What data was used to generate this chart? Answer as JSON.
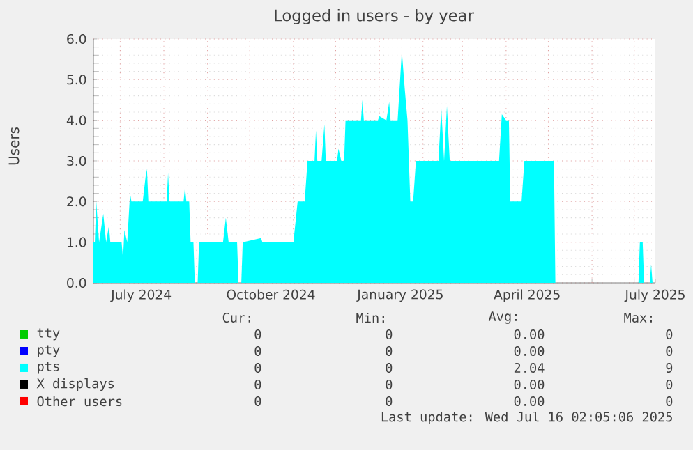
{
  "chart_data": {
    "type": "area",
    "title": "Logged in users - by year",
    "ylabel": "Users",
    "xlim": [
      "2024-06-12",
      "2025-07-16"
    ],
    "xticks": [
      {
        "value": "2024-07-01",
        "label": null
      },
      {
        "value": "2024-08-01",
        "label": null
      },
      {
        "value": "2024-09-01",
        "label": null
      },
      {
        "value": "2024-10-01",
        "label": null
      },
      {
        "value": "2024-11-01",
        "label": null
      },
      {
        "value": "2024-12-01",
        "label": null
      },
      {
        "value": "2025-01-01",
        "label": null
      },
      {
        "value": "2025-02-01",
        "label": null
      },
      {
        "value": "2025-03-01",
        "label": null
      },
      {
        "value": "2025-04-01",
        "label": null
      },
      {
        "value": "2025-05-01",
        "label": null
      },
      {
        "value": "2025-06-01",
        "label": null
      },
      {
        "value": "2025-07-01",
        "label": null
      },
      {
        "value": "2024-07-16",
        "label": "July 2024"
      },
      {
        "value": "2024-10-16",
        "label": "October 2024"
      },
      {
        "value": "2025-01-16",
        "label": "January 2025"
      },
      {
        "value": "2025-04-16",
        "label": "April 2025"
      },
      {
        "value": "2025-07-16",
        "label": "July 2025"
      }
    ],
    "ylim": [
      0,
      6
    ],
    "yticks": [
      {
        "value": 0,
        "label": "0.0"
      },
      {
        "value": 1,
        "label": "1.0"
      },
      {
        "value": 2,
        "label": "2.0"
      },
      {
        "value": 3,
        "label": "3.0"
      },
      {
        "value": 4,
        "label": "4.0"
      },
      {
        "value": 5,
        "label": "5.0"
      },
      {
        "value": 6,
        "label": "6.0"
      }
    ],
    "grid": true,
    "legend": "bottom",
    "x": [
      "2024-06-12",
      "2024-06-13",
      "2024-06-14",
      "2024-06-16",
      "2024-06-19",
      "2024-06-21",
      "2024-06-23",
      "2024-06-24",
      "2024-07-02",
      "2024-07-03",
      "2024-07-04",
      "2024-07-06",
      "2024-07-08",
      "2024-07-09",
      "2024-07-17",
      "2024-07-19",
      "2024-07-20",
      "2024-07-21",
      "2024-08-03",
      "2024-08-04",
      "2024-08-05",
      "2024-08-15",
      "2024-08-16",
      "2024-08-17",
      "2024-08-19",
      "2024-08-20",
      "2024-08-22",
      "2024-08-23",
      "2024-08-25",
      "2024-08-26",
      "2024-09-12",
      "2024-09-14",
      "2024-09-16",
      "2024-09-22",
      "2024-09-23",
      "2024-09-25",
      "2024-09-26",
      "2024-10-09",
      "2024-10-10",
      "2024-11-01",
      "2024-11-04",
      "2024-11-09",
      "2024-11-11",
      "2024-11-16",
      "2024-11-17",
      "2024-11-18",
      "2024-11-21",
      "2024-11-23",
      "2024-11-24",
      "2024-12-02",
      "2024-12-03",
      "2024-12-05",
      "2024-12-07",
      "2024-12-08",
      "2024-12-19",
      "2024-12-20",
      "2024-12-21",
      "2024-12-31",
      "2025-01-01",
      "2025-01-06",
      "2025-01-08",
      "2025-01-09",
      "2025-01-14",
      "2025-01-17",
      "2025-01-19",
      "2025-01-21",
      "2025-01-23",
      "2025-01-25",
      "2025-01-27",
      "2025-02-12",
      "2025-02-14",
      "2025-02-16",
      "2025-02-18",
      "2025-02-20",
      "2025-03-27",
      "2025-03-29",
      "2025-04-01",
      "2025-04-03",
      "2025-04-04",
      "2025-04-12",
      "2025-04-14",
      "2025-05-05",
      "2025-05-06",
      "2025-07-04",
      "2025-07-05",
      "2025-07-07",
      "2025-07-08",
      "2025-07-12",
      "2025-07-13",
      "2025-07-14",
      "2025-07-16"
    ],
    "series": [
      {
        "name": "tty",
        "color": "#00cc00",
        "values": [
          null,
          null,
          null,
          null,
          null,
          null,
          null,
          null,
          null,
          null,
          null,
          null,
          null,
          null,
          null,
          null,
          null,
          null,
          null,
          null,
          null,
          null,
          null,
          null,
          null,
          null,
          null,
          null,
          null,
          null,
          null,
          null,
          null,
          null,
          null,
          null,
          null,
          null,
          null,
          null,
          null,
          null,
          null,
          null,
          null,
          null,
          null,
          null,
          null,
          null,
          null,
          null,
          null,
          null,
          null,
          null,
          null,
          null,
          null,
          null,
          null,
          null,
          null,
          null,
          null,
          null,
          null,
          null,
          null,
          null,
          null,
          null,
          null,
          null,
          null,
          null,
          null,
          null,
          null,
          null,
          null,
          null,
          null,
          null,
          null,
          null,
          null,
          null,
          null,
          null,
          null
        ]
      },
      {
        "name": "pty",
        "color": "#0000ff",
        "values": [
          null,
          null,
          null,
          null,
          null,
          null,
          null,
          null,
          null,
          null,
          null,
          null,
          null,
          null,
          null,
          null,
          null,
          null,
          null,
          null,
          null,
          null,
          null,
          null,
          null,
          null,
          null,
          null,
          null,
          null,
          null,
          null,
          null,
          null,
          null,
          null,
          null,
          null,
          null,
          null,
          null,
          null,
          null,
          null,
          null,
          null,
          null,
          null,
          null,
          null,
          null,
          null,
          null,
          null,
          null,
          null,
          null,
          null,
          null,
          null,
          null,
          null,
          null,
          null,
          null,
          null,
          null,
          null,
          null,
          null,
          null,
          null,
          null,
          null,
          null,
          null,
          null,
          null,
          null,
          null,
          null,
          null,
          null,
          null,
          null,
          null,
          null,
          null,
          null,
          null,
          null
        ]
      },
      {
        "name": "pts",
        "color": "#00ffff",
        "values": [
          1.0,
          1.0,
          2.0,
          1.0,
          1.7,
          1.0,
          1.4,
          1.0,
          1.0,
          0.6,
          1.3,
          1.0,
          2.2,
          2.0,
          2.0,
          2.6,
          2.8,
          2.0,
          2.0,
          2.7,
          2.0,
          2.0,
          2.35,
          2.0,
          2.0,
          1.0,
          1.0,
          0,
          0,
          1.0,
          1.0,
          1.6,
          1.0,
          1.0,
          0,
          0,
          1.0,
          1.1,
          1.0,
          1.0,
          2.0,
          2.0,
          3.0,
          3.0,
          3.75,
          3.0,
          3.0,
          3.9,
          3.0,
          3.0,
          3.3,
          3.0,
          3.0,
          4.0,
          4.0,
          4.5,
          4.0,
          4.0,
          4.1,
          4.0,
          4.45,
          4.0,
          4.0,
          5.7,
          4.8,
          4.0,
          2.0,
          2.0,
          3.0,
          3.0,
          4.3,
          3.0,
          4.35,
          3.0,
          3.0,
          4.15,
          4.0,
          4.0,
          2.0,
          2.0,
          3.0,
          3.0,
          0,
          0,
          1.0,
          1.0,
          0,
          0,
          0.45,
          0,
          0
        ]
      },
      {
        "name": "X displays",
        "color": "#000000",
        "values": [
          null,
          null,
          null,
          null,
          null,
          null,
          null,
          null,
          null,
          null,
          null,
          null,
          null,
          null,
          null,
          null,
          null,
          null,
          null,
          null,
          null,
          null,
          null,
          null,
          null,
          null,
          null,
          null,
          null,
          null,
          null,
          null,
          null,
          null,
          null,
          null,
          null,
          null,
          null,
          null,
          null,
          null,
          null,
          null,
          null,
          null,
          null,
          null,
          null,
          null,
          null,
          null,
          null,
          null,
          null,
          null,
          null,
          null,
          null,
          null,
          null,
          null,
          null,
          null,
          null,
          null,
          null,
          null,
          null,
          null,
          null,
          null,
          null,
          null,
          null,
          null,
          null,
          null,
          null,
          null,
          null,
          null,
          null,
          null,
          null,
          null,
          null,
          null,
          null,
          null,
          null
        ]
      },
      {
        "name": "Other users",
        "color": "#ff0000",
        "values": [
          null,
          null,
          null,
          null,
          null,
          null,
          null,
          null,
          null,
          null,
          null,
          null,
          null,
          null,
          null,
          null,
          null,
          null,
          null,
          null,
          null,
          null,
          null,
          null,
          null,
          null,
          null,
          null,
          null,
          null,
          null,
          null,
          null,
          null,
          null,
          null,
          null,
          null,
          null,
          null,
          null,
          null,
          null,
          null,
          null,
          null,
          null,
          null,
          null,
          null,
          null,
          null,
          null,
          null,
          null,
          null,
          null,
          null,
          null,
          null,
          null,
          null,
          null,
          null,
          null,
          null,
          null,
          null,
          null,
          null,
          null,
          null,
          null,
          null,
          null,
          null,
          null,
          null,
          null,
          null,
          null,
          null,
          null,
          null,
          null,
          null,
          null,
          null,
          null,
          null,
          null
        ]
      }
    ],
    "annotations": [
      "Cur:",
      "Min:",
      "Avg:",
      "Max:",
      "0",
      "0",
      "0.00",
      "0",
      "0",
      "0",
      "0.00",
      "0",
      "0",
      "0",
      "2.04",
      "9",
      "0",
      "0",
      "0.00",
      "0",
      "0",
      "0",
      "0.00",
      "0",
      "Last update: Wed Jul 16 02:05:06 2025"
    ]
  }
}
